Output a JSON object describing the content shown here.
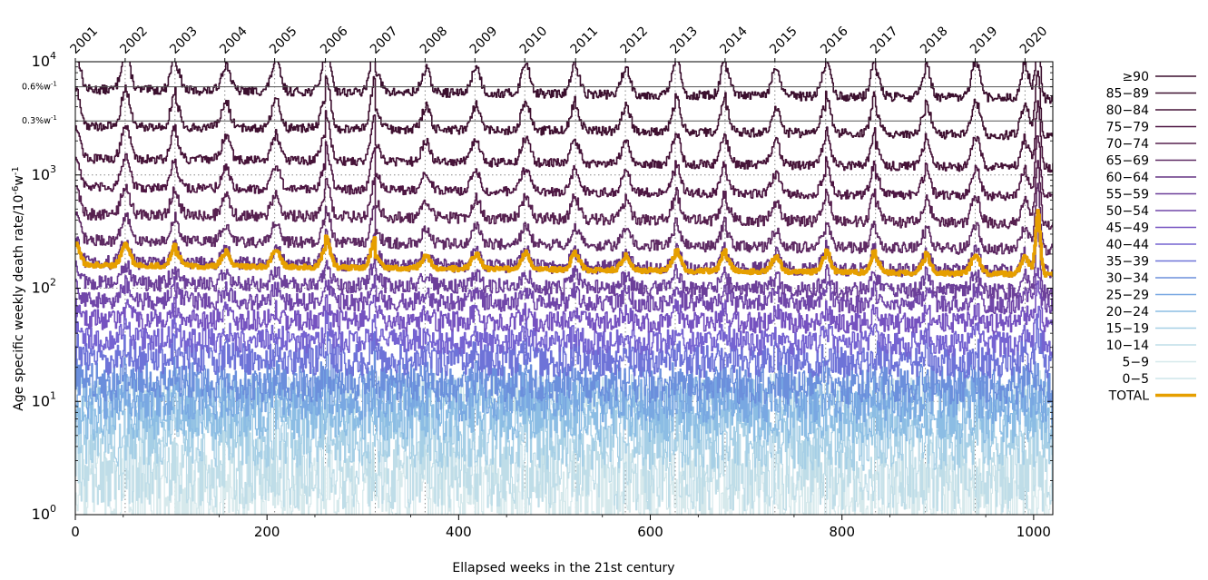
{
  "chart_data": {
    "type": "line",
    "title": "",
    "xlabel": "Ellapsed weeks in the 21st century",
    "ylabel": "Age specific weekly death rate/10",
    "ylabel_sup1": "-6",
    "ylabel_unit": "w",
    "ylabel_sup2": "-1",
    "xlim": [
      0,
      1020
    ],
    "ylim": [
      1,
      10000
    ],
    "y_scale": "log",
    "x_ticks": [
      0,
      200,
      400,
      600,
      800,
      1000
    ],
    "x_tick_labels": [
      "0",
      "200",
      "400",
      "600",
      "800",
      "1000"
    ],
    "y_ticks": [
      1,
      10,
      100,
      1000,
      10000
    ],
    "y_tick_labels": [
      {
        "base": "10",
        "exp": "0"
      },
      {
        "base": "10",
        "exp": "1"
      },
      {
        "base": "10",
        "exp": "2"
      },
      {
        "base": "10",
        "exp": "3"
      },
      {
        "base": "10",
        "exp": "4"
      }
    ],
    "top_axis": {
      "labels": [
        "2001",
        "2002",
        "2003",
        "2004",
        "2005",
        "2006",
        "2007",
        "2008",
        "2009",
        "2010",
        "2011",
        "2012",
        "2013",
        "2014",
        "2015",
        "2016",
        "2017",
        "2018",
        "2019",
        "2020"
      ],
      "week_positions": [
        0,
        52,
        104,
        156,
        208,
        261,
        313,
        365,
        417,
        469,
        522,
        574,
        626,
        678,
        730,
        783,
        835,
        887,
        939,
        991
      ]
    },
    "reference_lines": [
      {
        "label": "0.6%w",
        "sup": "-1",
        "y": 6000
      },
      {
        "label": "0.3%w",
        "sup": "-1",
        "y": 3000
      }
    ],
    "grid": "dotted vertical lines at year starts, dotted horizontal lines at decades",
    "legend_position": "right",
    "series": [
      {
        "name": "≥90",
        "base": 5700,
        "amp": 0.35,
        "noise": 0.04,
        "color": "#3b0f2e",
        "width": 1.6
      },
      {
        "name": "85−89",
        "base": 2700,
        "amp": 0.33,
        "noise": 0.04,
        "color": "#3f1030",
        "width": 1.6
      },
      {
        "name": "80−84",
        "base": 1400,
        "amp": 0.3,
        "noise": 0.04,
        "color": "#461338",
        "width": 1.6
      },
      {
        "name": "75−79",
        "base": 780,
        "amp": 0.27,
        "noise": 0.04,
        "color": "#4d1642",
        "width": 1.6
      },
      {
        "name": "70−74",
        "base": 450,
        "amp": 0.25,
        "noise": 0.05,
        "color": "#56204f",
        "width": 1.6
      },
      {
        "name": "65−69",
        "base": 265,
        "amp": 0.22,
        "noise": 0.05,
        "color": "#5e2a63",
        "width": 1.6
      },
      {
        "name": "60−64",
        "base": 170,
        "amp": 0.19,
        "noise": 0.06,
        "color": "#653484",
        "width": 1.6
      },
      {
        "name": "55−59",
        "base": 112,
        "amp": 0.16,
        "noise": 0.07,
        "color": "#6c3f99",
        "width": 1.6
      },
      {
        "name": "50−54",
        "base": 78,
        "amp": 0.14,
        "noise": 0.08,
        "color": "#7046a9",
        "width": 1.6
      },
      {
        "name": "45−49",
        "base": 53,
        "amp": 0.12,
        "noise": 0.09,
        "color": "#7552c0",
        "width": 1.6
      },
      {
        "name": "40−44",
        "base": 35,
        "amp": 0.11,
        "noise": 0.11,
        "color": "#7563d1",
        "width": 1.6
      },
      {
        "name": "35−39",
        "base": 24,
        "amp": 0.09,
        "noise": 0.14,
        "color": "#6e73d8",
        "width": 1.6
      },
      {
        "name": "30−34",
        "base": 15,
        "amp": 0.08,
        "noise": 0.17,
        "color": "#6b8fdc",
        "width": 1.4
      },
      {
        "name": "25−29",
        "base": 11,
        "amp": 0.07,
        "noise": 0.2,
        "color": "#79a8e2",
        "width": 1.4
      },
      {
        "name": "20−24",
        "base": 8,
        "amp": 0.06,
        "noise": 0.24,
        "color": "#8cbde4",
        "width": 1.4
      },
      {
        "name": "15−19",
        "base": 5,
        "amp": 0.06,
        "noise": 0.28,
        "color": "#a6cfe6",
        "width": 1.3
      },
      {
        "name": "10−14",
        "base": 2.5,
        "amp": 0.05,
        "noise": 0.34,
        "color": "#bfdde8",
        "width": 1.2
      },
      {
        "name": "5−9",
        "base": 1.6,
        "amp": 0.05,
        "noise": 0.36,
        "color": "#d6e9ec",
        "width": 1.2
      },
      {
        "name": "0−5",
        "base": 12,
        "amp": 0.05,
        "noise": 0.18,
        "color": "#cde6ea",
        "width": 1.2
      },
      {
        "name": "TOTAL",
        "base": 160,
        "amp": 0.19,
        "noise": 0.02,
        "color": "#e69f00",
        "width": 3.5
      }
    ]
  }
}
